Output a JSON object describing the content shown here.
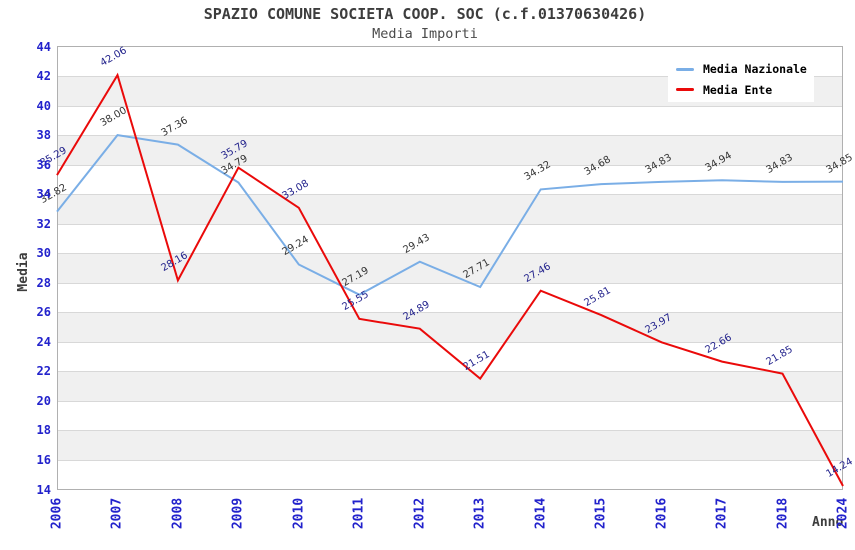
{
  "title": "SPAZIO COMUNE SOCIETA COOP. SOC (c.f.01370630426)",
  "subtitle": "Media Importi",
  "axes": {
    "x_label": "Anno",
    "y_label": "Media",
    "y_ticks": [
      "44",
      "42",
      "40",
      "38",
      "36",
      "34",
      "32",
      "30",
      "28",
      "26",
      "24",
      "22",
      "20",
      "18",
      "16",
      "14"
    ],
    "x_ticks": [
      "2006",
      "2007",
      "2008",
      "2009",
      "2010",
      "2011",
      "2012",
      "2013",
      "2014",
      "2015",
      "2016",
      "2017",
      "2018",
      "2024"
    ]
  },
  "legend": {
    "position": "top-right",
    "items": [
      {
        "label": "Media Nazionale",
        "color": "#7aaee6"
      },
      {
        "label": "Media Ente",
        "color": "#ea0a0a"
      }
    ]
  },
  "chart_data": {
    "type": "line",
    "title": "SPAZIO COMUNE SOCIETA COOP. SOC (c.f.01370630426)",
    "subtitle": "Media Importi",
    "xlabel": "Anno",
    "ylabel": "Media",
    "x_categories": [
      "2006",
      "2007",
      "2008",
      "2009",
      "2010",
      "2011",
      "2012",
      "2013",
      "2014",
      "2015",
      "2016",
      "2017",
      "2018",
      "2024"
    ],
    "ylim": [
      14,
      44
    ],
    "y_tick_step": 2,
    "grid": true,
    "alternating_bands": true,
    "legend_position": "top-right",
    "series": [
      {
        "name": "Media Nazionale",
        "color": "#7aaee6",
        "label_color": "#333333",
        "values": [
          32.82,
          38.0,
          37.36,
          34.79,
          29.24,
          27.19,
          29.43,
          27.71,
          34.32,
          34.68,
          34.83,
          34.94,
          34.83,
          34.85
        ],
        "point_labels": [
          "32.82",
          "38.00",
          "37.36",
          "34.79",
          "29.24",
          "27.19",
          "29.43",
          "27.71",
          "34.32",
          "34.68",
          "34.83",
          "34.94",
          "34.83",
          "34.85"
        ]
      },
      {
        "name": "Media Ente",
        "color": "#ea0a0a",
        "label_color": "#22228c",
        "values": [
          35.29,
          42.06,
          28.16,
          35.79,
          33.08,
          25.55,
          24.89,
          21.51,
          27.46,
          25.81,
          23.97,
          22.66,
          21.85,
          14.24
        ],
        "point_labels": [
          "35.29",
          "42.06",
          "28.16",
          "35.79",
          "33.08",
          "25.55",
          "24.89",
          "21.51",
          "27.46",
          "25.81",
          "23.97",
          "22.66",
          "21.85",
          "14.24"
        ]
      }
    ]
  },
  "colors": {
    "background": "#ffffff",
    "band_gray": "#f0f0f0",
    "gridline": "#d8d8d8",
    "plot_border": "#b0b0b0",
    "tick_text": "#2222cc",
    "title_text": "#3d3d3d",
    "axis_title_text": "#3d3d3d",
    "legend_text": "#000000"
  }
}
